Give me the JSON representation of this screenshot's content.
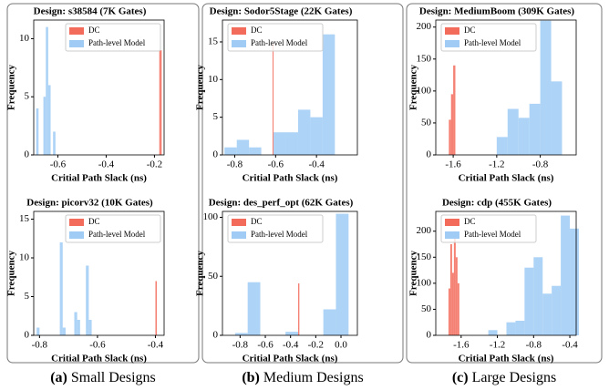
{
  "chart_data": [
    {
      "type": "histogram",
      "title": "Design: s38584 (7K Gates)",
      "xlabel": "Critial Path Slack (ns)",
      "ylabel": "Frequency",
      "xlim": [
        -0.7,
        -0.16
      ],
      "ylim": [
        0,
        11.6
      ],
      "xticks": [
        -0.6,
        -0.4,
        -0.2
      ],
      "yticks": [
        0,
        5,
        10
      ],
      "legend": "upper right",
      "series": [
        {
          "name": "DC",
          "color": "#f26b5b",
          "bins": [
            -0.18,
            -0.17
          ],
          "values": [
            9
          ]
        },
        {
          "name": "Path-level Model",
          "color": "#9fcbf5",
          "bins": [
            -0.69,
            -0.68,
            -0.67,
            -0.66,
            -0.65,
            -0.64,
            -0.63,
            -0.62,
            -0.61
          ],
          "values": [
            4,
            0,
            0,
            5,
            11,
            6,
            0,
            2
          ]
        }
      ]
    },
    {
      "type": "histogram",
      "title": "Design: picorv32 (10K Gates)",
      "xlabel": "Critial Path Slack (ns)",
      "ylabel": "Frequency",
      "xlim": [
        -0.82,
        -0.37
      ],
      "ylim": [
        0,
        16
      ],
      "xticks": [
        -0.8,
        -0.6,
        -0.4
      ],
      "yticks": [
        0,
        5,
        10,
        15
      ],
      "legend": "upper right",
      "series": [
        {
          "name": "DC",
          "color": "#f26b5b",
          "bins": [
            -0.4,
            -0.395
          ],
          "values": [
            7
          ]
        },
        {
          "name": "Path-level Model",
          "color": "#9fcbf5",
          "bins": [
            -0.81,
            -0.8,
            -0.79,
            -0.78,
            -0.77,
            -0.76,
            -0.75,
            -0.74,
            -0.73,
            -0.72,
            -0.71,
            -0.7,
            -0.69,
            -0.68,
            -0.67,
            -0.66,
            -0.65,
            -0.64,
            -0.63,
            -0.62
          ],
          "values": [
            1,
            0,
            0,
            0,
            0,
            0,
            0,
            0,
            12,
            1,
            0,
            0,
            0,
            3,
            2,
            0,
            0,
            9,
            2
          ]
        }
      ]
    },
    {
      "type": "histogram",
      "title": "Design: Sodor5Stage (22K Gates)",
      "xlabel": "Critial Path Slack (ns)",
      "ylabel": "Frequency",
      "xlim": [
        -0.86,
        -0.2
      ],
      "ylim": [
        0,
        17.9
      ],
      "xticks": [
        -0.8,
        -0.6,
        -0.4
      ],
      "yticks": [
        0,
        5,
        10,
        15
      ],
      "legend": "upper left",
      "series": [
        {
          "name": "DC",
          "color": "#f26b5b",
          "bins": [
            -0.615,
            -0.61
          ],
          "values": [
            15
          ]
        },
        {
          "name": "Path-level Model",
          "color": "#9fcbf5",
          "bins": [
            -0.85,
            -0.79,
            -0.73,
            -0.67,
            -0.61,
            -0.55,
            -0.49,
            -0.43,
            -0.37,
            -0.31
          ],
          "values": [
            1,
            2,
            1,
            0,
            3,
            3,
            6,
            5,
            16
          ]
        }
      ]
    },
    {
      "type": "histogram",
      "title": "Design: des_perf_opt (62K Gates)",
      "xlabel": "Critial Path Slack (ns)",
      "ylabel": "Frequency",
      "xlim": [
        -0.94,
        0.13
      ],
      "ylim": [
        0,
        105
      ],
      "xticks": [
        -0.8,
        -0.6,
        -0.4,
        -0.2,
        {
          "value": 0,
          "label": "0.0"
        }
      ],
      "yticks": [
        0,
        50,
        100
      ],
      "legend": "upper left",
      "series": [
        {
          "name": "DC",
          "color": "#f26b5b",
          "bins": [
            -0.34,
            -0.33
          ],
          "values": [
            44
          ]
        },
        {
          "name": "Path-level Model",
          "color": "#9fcbf5",
          "bins": [
            -0.84,
            -0.74,
            -0.64,
            -0.54,
            -0.44,
            -0.34,
            -0.24,
            -0.14,
            -0.04,
            0.06
          ],
          "values": [
            2,
            45,
            0,
            0,
            3,
            0,
            0,
            22,
            103
          ]
        }
      ]
    },
    {
      "type": "histogram",
      "title": "Design: MediumBoom (309K Gates)",
      "xlabel": "Critial Path Slack (ns)",
      "ylabel": "Frequency",
      "xlim": [
        -1.76,
        -0.47
      ],
      "ylim": [
        0,
        211
      ],
      "xticks": [
        -1.6,
        -1.2,
        -0.8
      ],
      "yticks": [
        0,
        50,
        100,
        150,
        200
      ],
      "legend": "upper left",
      "series": [
        {
          "name": "DC",
          "color": "#f26b5b",
          "bins": [
            -1.64,
            -1.62,
            -1.6,
            -1.58
          ],
          "values": [
            55,
            95,
            140
          ]
        },
        {
          "name": "Path-level Model",
          "color": "#9fcbf5",
          "bins": [
            -1.2,
            -1.1,
            -1.0,
            -0.9,
            -0.8,
            -0.7,
            -0.6
          ],
          "values": [
            28,
            72,
            58,
            80,
            210,
            115
          ]
        }
      ]
    },
    {
      "type": "histogram",
      "title": "Design: cdp (455K Gates)",
      "xlabel": "Critial Path Slack (ns)",
      "ylabel": "Frequency",
      "xlim": [
        -1.88,
        -0.33
      ],
      "ylim": [
        0,
        238
      ],
      "xticks": [
        -1.6,
        -1.2,
        -0.8,
        -0.4
      ],
      "yticks": [
        0,
        50,
        100,
        150,
        200
      ],
      "legend": "upper left",
      "series": [
        {
          "name": "DC",
          "color": "#f26b5b",
          "bins": [
            -1.74,
            -1.72,
            -1.7,
            -1.68,
            -1.66,
            -1.64,
            -1.62
          ],
          "values": [
            90,
            175,
            120,
            200,
            150,
            100
          ]
        },
        {
          "name": "Path-level Model",
          "color": "#9fcbf5",
          "bins": [
            -1.3,
            -1.2,
            -1.1,
            -1.0,
            -0.9,
            -0.8,
            -0.7,
            -0.6,
            -0.5,
            -0.4,
            -0.3
          ],
          "values": [
            10,
            0,
            25,
            28,
            130,
            150,
            80,
            95,
            230,
            205
          ]
        }
      ]
    }
  ],
  "captions": [
    {
      "label": "(a)",
      "text": "Small Designs"
    },
    {
      "label": "(b)",
      "text": "Medium Designs"
    },
    {
      "label": "(c)",
      "text": "Large Designs"
    }
  ]
}
